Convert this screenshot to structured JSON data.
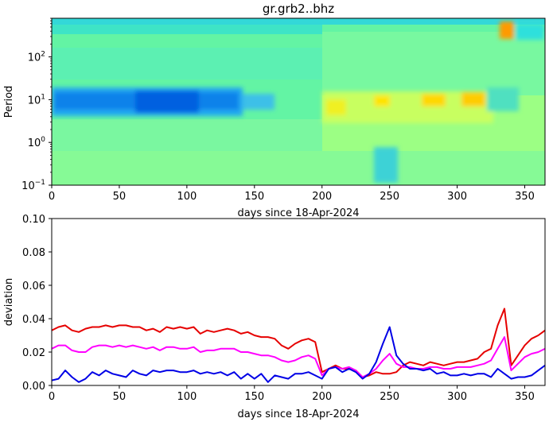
{
  "figure": {
    "title": "gr.grb2..bhz"
  },
  "chart_data": [
    {
      "type": "heatmap",
      "xlabel": "days since 18-Apr-2024",
      "ylabel": "Period",
      "xlim": [
        0,
        365
      ],
      "ylim": [
        0.1,
        800
      ],
      "yscale": "log",
      "xticks": [
        0,
        50,
        100,
        150,
        200,
        250,
        300,
        350
      ],
      "yticks": [
        {
          "value": 0.1,
          "base": "10",
          "exp": "−1"
        },
        {
          "value": 1,
          "base": "10",
          "exp": "0"
        },
        {
          "value": 10,
          "base": "10",
          "exp": "1"
        },
        {
          "value": 100,
          "base": "10",
          "exp": "2"
        }
      ],
      "colormap": "jet",
      "features": [
        {
          "x_range": [
            0,
            140
          ],
          "period_range": [
            3,
            20
          ],
          "level": "low",
          "color": "#0070e8"
        },
        {
          "x_range": [
            200,
            320
          ],
          "period_range": [
            4,
            20
          ],
          "level": "high",
          "color": "#ffe000"
        },
        {
          "x_range": [
            330,
            345
          ],
          "period_range": [
            150,
            800
          ],
          "level": "very high",
          "color": "#ff9800"
        },
        {
          "x_range": [
            240,
            250
          ],
          "period_range": [
            0.1,
            0.4
          ],
          "level": "low",
          "color": "#20c0e8"
        }
      ]
    },
    {
      "type": "line",
      "xlabel": "days since 18-Apr-2024",
      "ylabel": "deviation",
      "xlim": [
        0,
        365
      ],
      "ylim": [
        0,
        0.1
      ],
      "xticks": [
        0,
        50,
        100,
        150,
        200,
        250,
        300,
        350
      ],
      "yticks": [
        0.0,
        0.02,
        0.04,
        0.06,
        0.08,
        0.1
      ],
      "ytick_labels": [
        "0.00",
        "0.02",
        "0.04",
        "0.06",
        "0.08",
        "0.10"
      ],
      "x": [
        0,
        5,
        10,
        15,
        20,
        25,
        30,
        35,
        40,
        45,
        50,
        55,
        60,
        65,
        70,
        75,
        80,
        85,
        90,
        95,
        100,
        105,
        110,
        115,
        120,
        125,
        130,
        135,
        140,
        145,
        150,
        155,
        160,
        165,
        170,
        175,
        180,
        185,
        190,
        195,
        200,
        205,
        210,
        215,
        220,
        225,
        230,
        235,
        240,
        245,
        250,
        255,
        260,
        265,
        270,
        275,
        280,
        285,
        290,
        295,
        300,
        305,
        310,
        315,
        320,
        325,
        330,
        335,
        340,
        345,
        350,
        355,
        360,
        365
      ],
      "series": [
        {
          "color": "#e60000",
          "values": [
            0.033,
            0.035,
            0.036,
            0.033,
            0.032,
            0.034,
            0.035,
            0.035,
            0.036,
            0.035,
            0.036,
            0.036,
            0.035,
            0.035,
            0.033,
            0.034,
            0.032,
            0.035,
            0.034,
            0.035,
            0.034,
            0.035,
            0.031,
            0.033,
            0.032,
            0.033,
            0.034,
            0.033,
            0.031,
            0.032,
            0.03,
            0.029,
            0.029,
            0.028,
            0.024,
            0.022,
            0.025,
            0.027,
            0.028,
            0.026,
            0.008,
            0.01,
            0.012,
            0.01,
            0.01,
            0.009,
            0.005,
            0.006,
            0.008,
            0.007,
            0.007,
            0.008,
            0.012,
            0.014,
            0.013,
            0.012,
            0.014,
            0.013,
            0.012,
            0.013,
            0.014,
            0.014,
            0.015,
            0.016,
            0.02,
            0.022,
            0.036,
            0.046,
            0.012,
            0.018,
            0.024,
            0.028,
            0.03,
            0.033
          ]
        },
        {
          "color": "#ff00ff",
          "values": [
            0.022,
            0.024,
            0.024,
            0.021,
            0.02,
            0.02,
            0.023,
            0.024,
            0.024,
            0.023,
            0.024,
            0.023,
            0.024,
            0.023,
            0.022,
            0.023,
            0.021,
            0.023,
            0.023,
            0.022,
            0.022,
            0.023,
            0.02,
            0.021,
            0.021,
            0.022,
            0.022,
            0.022,
            0.02,
            0.02,
            0.019,
            0.018,
            0.018,
            0.017,
            0.015,
            0.014,
            0.015,
            0.017,
            0.018,
            0.016,
            0.006,
            0.01,
            0.011,
            0.01,
            0.011,
            0.009,
            0.005,
            0.007,
            0.01,
            0.015,
            0.019,
            0.013,
            0.011,
            0.011,
            0.01,
            0.01,
            0.011,
            0.011,
            0.01,
            0.01,
            0.011,
            0.011,
            0.011,
            0.012,
            0.013,
            0.015,
            0.022,
            0.029,
            0.009,
            0.013,
            0.017,
            0.019,
            0.02,
            0.022
          ]
        },
        {
          "color": "#0000e6",
          "values": [
            0.003,
            0.004,
            0.009,
            0.005,
            0.002,
            0.004,
            0.008,
            0.006,
            0.009,
            0.007,
            0.006,
            0.005,
            0.009,
            0.007,
            0.006,
            0.009,
            0.008,
            0.009,
            0.009,
            0.008,
            0.008,
            0.009,
            0.007,
            0.008,
            0.007,
            0.008,
            0.006,
            0.008,
            0.004,
            0.007,
            0.004,
            0.007,
            0.002,
            0.006,
            0.005,
            0.004,
            0.007,
            0.007,
            0.008,
            0.006,
            0.004,
            0.01,
            0.011,
            0.008,
            0.01,
            0.008,
            0.004,
            0.007,
            0.014,
            0.025,
            0.035,
            0.018,
            0.013,
            0.01,
            0.01,
            0.009,
            0.01,
            0.007,
            0.008,
            0.006,
            0.006,
            0.007,
            0.006,
            0.007,
            0.007,
            0.005,
            0.01,
            0.007,
            0.004,
            0.005,
            0.005,
            0.006,
            0.009,
            0.012
          ]
        }
      ]
    }
  ]
}
